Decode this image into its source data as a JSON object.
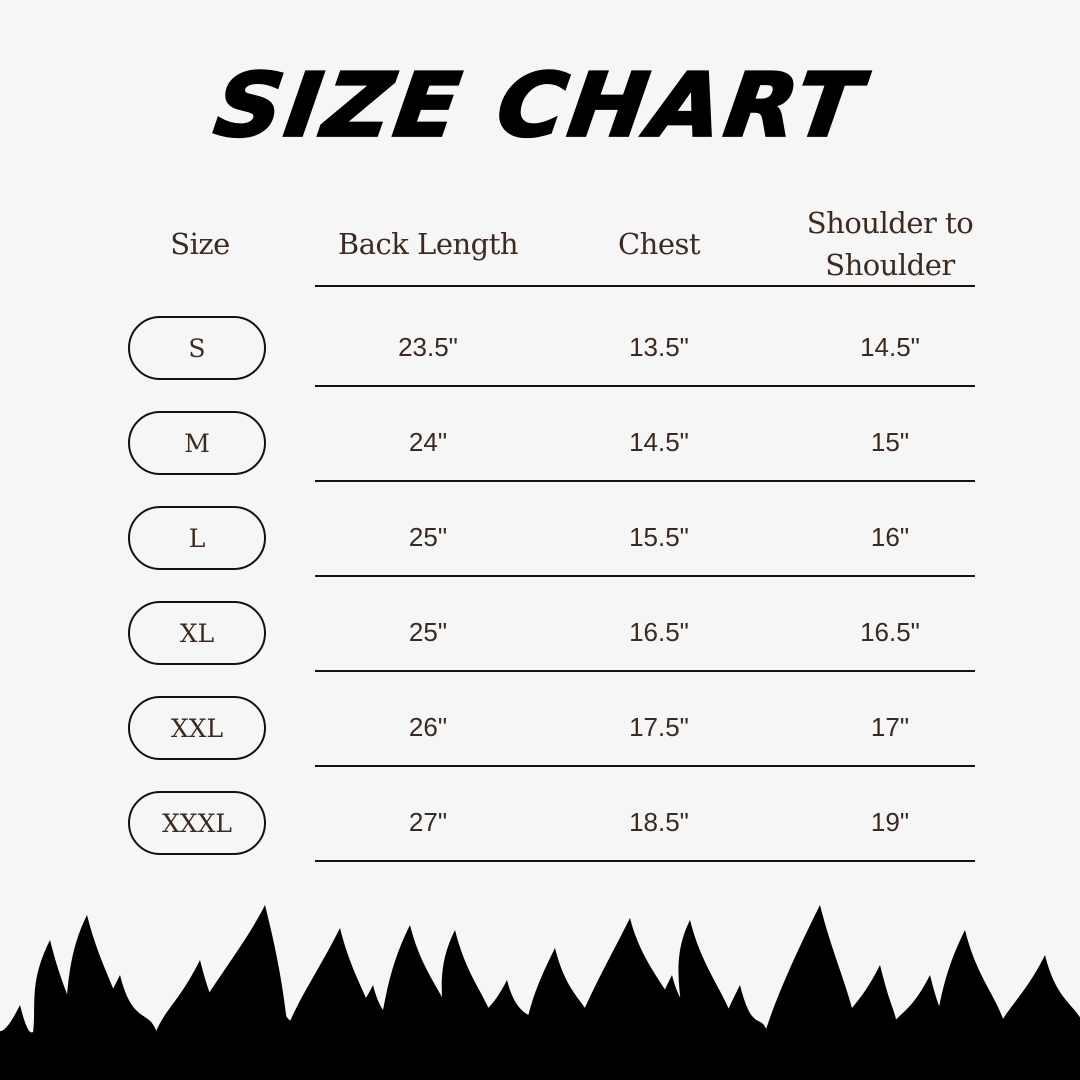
{
  "title": "SIZE CHART",
  "headers": [
    "Size",
    "Back Length",
    "Chest",
    "Shoulder to",
    "Shoulder"
  ],
  "rows": [
    {
      "size": "S",
      "back_length": "23.5\"",
      "chest": "13.5\"",
      "shoulder": "14.5\""
    },
    {
      "size": "M",
      "back_length": "24\"",
      "chest": "14.5\"",
      "shoulder": "15\""
    },
    {
      "size": "L",
      "back_length": "25\"",
      "chest": "15.5\"",
      "shoulder": "16\""
    },
    {
      "size": "XL",
      "back_length": "25\"",
      "chest": "16.5\"",
      "shoulder": "16.5\""
    },
    {
      "size": "XXL",
      "back_length": "26\"",
      "chest": "17.5\"",
      "shoulder": "17\""
    },
    {
      "size": "XXXL",
      "back_length": "27\"",
      "chest": "18.5\"",
      "shoulder": "19\""
    }
  ],
  "colors": {
    "background": "#f6f6f6",
    "text": "#3d2b22",
    "ink": "#000000"
  },
  "decoration": "flames-border"
}
